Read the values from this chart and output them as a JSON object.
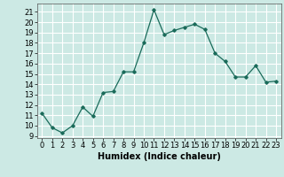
{
  "x": [
    0,
    1,
    2,
    3,
    4,
    5,
    6,
    7,
    8,
    9,
    10,
    11,
    12,
    13,
    14,
    15,
    16,
    17,
    18,
    19,
    20,
    21,
    22,
    23
  ],
  "y": [
    11.2,
    9.8,
    9.3,
    10.0,
    11.8,
    10.9,
    13.2,
    13.3,
    15.2,
    15.2,
    18.0,
    21.2,
    18.8,
    19.2,
    19.5,
    19.8,
    19.3,
    17.0,
    16.2,
    14.7,
    14.7,
    15.8,
    14.2,
    14.3
  ],
  "line_color": "#1a6b5a",
  "marker": "D",
  "marker_size": 1.8,
  "line_width": 0.9,
  "xlabel": "Humidex (Indice chaleur)",
  "xlabel_fontsize": 7,
  "ylabel_ticks": [
    9,
    10,
    11,
    12,
    13,
    14,
    15,
    16,
    17,
    18,
    19,
    20,
    21
  ],
  "xlim": [
    -0.5,
    23.5
  ],
  "ylim": [
    8.8,
    21.8
  ],
  "background_color": "#cce9e4",
  "grid_color": "#ffffff",
  "tick_fontsize": 6.0
}
